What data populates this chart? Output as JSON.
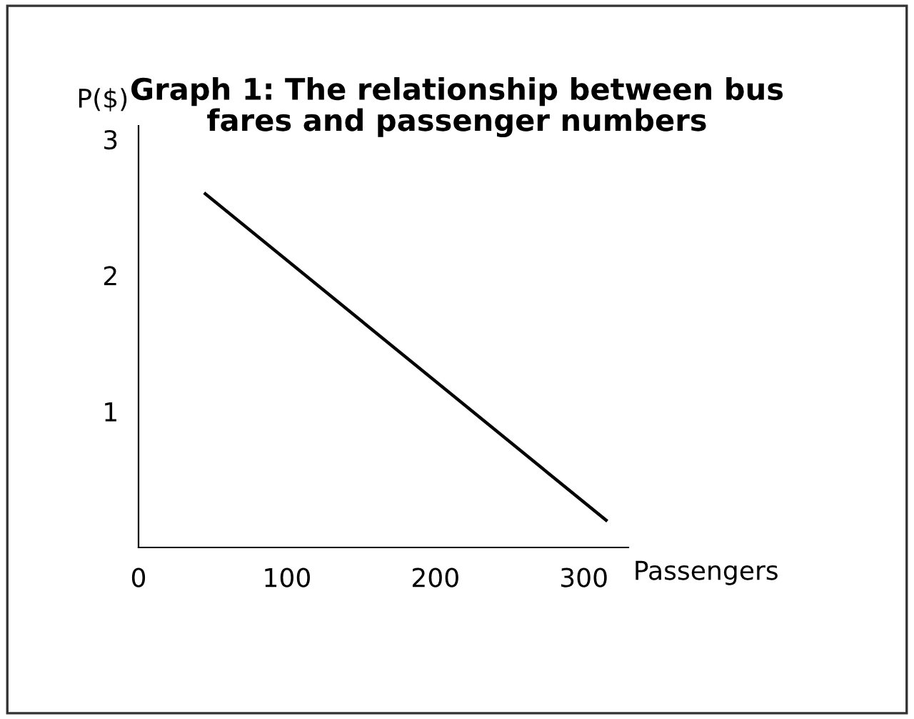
{
  "chart_data": {
    "type": "line",
    "title": "Graph 1: The relationship between bus\nfares and passenger numbers",
    "xlabel": "Passengers",
    "ylabel": "P($)",
    "x": [
      45,
      315
    ],
    "series": [
      {
        "color": "#000000",
        "values": [
          2.6,
          0.2
        ]
      }
    ],
    "xlim": [
      0,
      330
    ],
    "xticks": [
      0,
      100,
      200,
      300
    ],
    "ylim": [
      0,
      3.1
    ],
    "yticks": [
      1,
      2,
      3
    ],
    "grid": false,
    "legend": false,
    "marker": "none",
    "line_style": "solid"
  }
}
